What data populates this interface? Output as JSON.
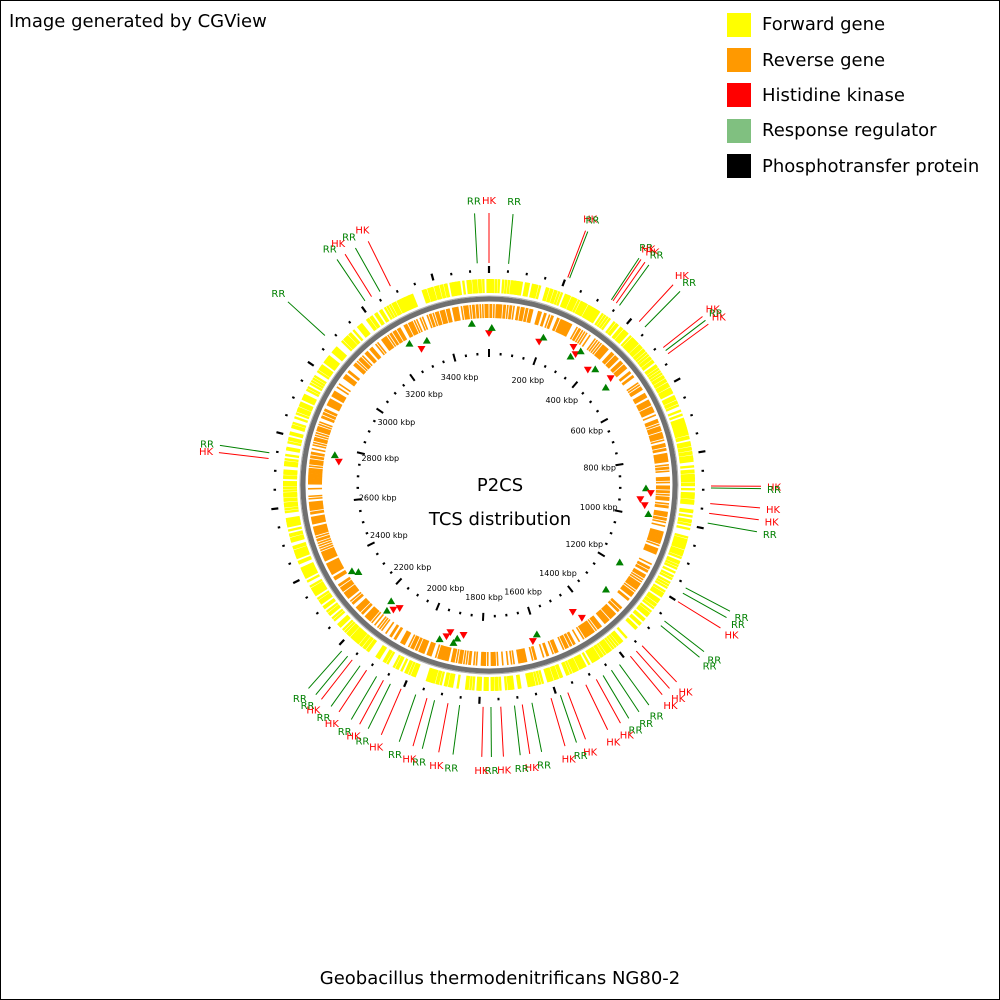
{
  "credit": "Image generated by CGView",
  "title_line1": "P2CS",
  "title_line2": "TCS distribution",
  "organism": "Geobacillus thermodenitrificans NG80-2",
  "legend": [
    {
      "label": "Forward gene",
      "color": "#ffff00"
    },
    {
      "label": "Reverse gene",
      "color": "#ff9900"
    },
    {
      "label": "Histidine kinase",
      "color": "#ff0000"
    },
    {
      "label": "Response regulator",
      "color": "#80c080"
    },
    {
      "label": "Phosphotransfer protein",
      "color": "#000000"
    }
  ],
  "genome_kbp": 3550,
  "ruler_labels": [
    {
      "kbp": 200,
      "text": "200 kbp"
    },
    {
      "kbp": 400,
      "text": "400 kbp"
    },
    {
      "kbp": 600,
      "text": "600 kbp"
    },
    {
      "kbp": 800,
      "text": "800 kbp"
    },
    {
      "kbp": 1000,
      "text": "1000 kbp"
    },
    {
      "kbp": 1200,
      "text": "1200 kbp"
    },
    {
      "kbp": 1400,
      "text": "1400 kbp"
    },
    {
      "kbp": 1600,
      "text": "1600 kbp"
    },
    {
      "kbp": 1800,
      "text": "1800 kbp"
    },
    {
      "kbp": 2000,
      "text": "2000 kbp"
    },
    {
      "kbp": 2200,
      "text": "2200 kbp"
    },
    {
      "kbp": 2400,
      "text": "2400 kbp"
    },
    {
      "kbp": 2600,
      "text": "2600 kbp"
    },
    {
      "kbp": 2800,
      "text": "2800 kbp"
    },
    {
      "kbp": 3000,
      "text": "3000 kbp"
    },
    {
      "kbp": 3200,
      "text": "3200 kbp"
    },
    {
      "kbp": 3400,
      "text": "3400 kbp"
    }
  ],
  "features": [
    {
      "type": "RR",
      "kbp": 50
    },
    {
      "type": "HK",
      "kbp": 0
    },
    {
      "type": "RR",
      "kbp": 3520
    },
    {
      "type": "HK",
      "kbp": 205
    },
    {
      "type": "RR",
      "kbp": 210
    },
    {
      "type": "RR",
      "kbp": 330
    },
    {
      "type": "HK",
      "kbp": 335
    },
    {
      "type": "HK",
      "kbp": 345
    },
    {
      "type": "RR",
      "kbp": 355
    },
    {
      "type": "HK",
      "kbp": 420
    },
    {
      "type": "RR",
      "kbp": 440
    },
    {
      "type": "HK",
      "kbp": 510
    },
    {
      "type": "RR",
      "kbp": 520
    },
    {
      "type": "HK",
      "kbp": 530
    },
    {
      "type": "HK",
      "kbp": 890
    },
    {
      "type": "RR",
      "kbp": 895
    },
    {
      "type": "HK",
      "kbp": 935
    },
    {
      "type": "HK",
      "kbp": 960
    },
    {
      "type": "RR",
      "kbp": 985
    },
    {
      "type": "RR",
      "kbp": 1160
    },
    {
      "type": "RR",
      "kbp": 1175
    },
    {
      "type": "HK",
      "kbp": 1200
    },
    {
      "type": "RR",
      "kbp": 1260
    },
    {
      "type": "RR",
      "kbp": 1275
    },
    {
      "type": "HK",
      "kbp": 1345
    },
    {
      "type": "HK",
      "kbp": 1365
    },
    {
      "type": "HK",
      "kbp": 1385
    },
    {
      "type": "RR",
      "kbp": 1420
    },
    {
      "type": "RR",
      "kbp": 1445
    },
    {
      "type": "RR",
      "kbp": 1470
    },
    {
      "type": "HK",
      "kbp": 1490
    },
    {
      "type": "HK",
      "kbp": 1520
    },
    {
      "type": "HK",
      "kbp": 1570
    },
    {
      "type": "RR",
      "kbp": 1590
    },
    {
      "type": "HK",
      "kbp": 1615
    },
    {
      "type": "RR",
      "kbp": 1665
    },
    {
      "type": "HK",
      "kbp": 1690
    },
    {
      "type": "RR",
      "kbp": 1710
    },
    {
      "type": "HK",
      "kbp": 1745
    },
    {
      "type": "RR",
      "kbp": 1770
    },
    {
      "type": "HK",
      "kbp": 1790
    },
    {
      "type": "RR",
      "kbp": 1850
    },
    {
      "type": "HK",
      "kbp": 1880
    },
    {
      "type": "RR",
      "kbp": 1915
    },
    {
      "type": "HK",
      "kbp": 1935
    },
    {
      "type": "RR",
      "kbp": 1965
    },
    {
      "type": "HK",
      "kbp": 2005
    },
    {
      "type": "RR",
      "kbp": 2035
    },
    {
      "type": "HK",
      "kbp": 2055
    },
    {
      "type": "RR",
      "kbp": 2075
    },
    {
      "type": "HK",
      "kbp": 2105
    },
    {
      "type": "RR",
      "kbp": 2125
    },
    {
      "type": "HK",
      "kbp": 2150
    },
    {
      "type": "RR",
      "kbp": 2165
    },
    {
      "type": "RR",
      "kbp": 2185
    },
    {
      "type": "HK",
      "kbp": 2730
    },
    {
      "type": "RR",
      "kbp": 2745
    },
    {
      "type": "RR",
      "kbp": 3080
    },
    {
      "type": "RR",
      "kbp": 3215
    },
    {
      "type": "HK",
      "kbp": 3235
    },
    {
      "type": "RR",
      "kbp": 3260
    },
    {
      "type": "HK",
      "kbp": 3290
    }
  ],
  "markers": [
    {
      "type": "HK",
      "kbp": 0
    },
    {
      "type": "RR",
      "kbp": 10
    },
    {
      "type": "RR",
      "kbp": 3490
    },
    {
      "type": "HK",
      "kbp": 190
    },
    {
      "type": "RR",
      "kbp": 200
    },
    {
      "type": "HK",
      "kbp": 310
    },
    {
      "type": "RR",
      "kbp": 320
    },
    {
      "type": "HK",
      "kbp": 330
    },
    {
      "type": "RR",
      "kbp": 340
    },
    {
      "type": "HK",
      "kbp": 400
    },
    {
      "type": "RR",
      "kbp": 420
    },
    {
      "type": "HK",
      "kbp": 480
    },
    {
      "type": "RR",
      "kbp": 495
    },
    {
      "type": "RR",
      "kbp": 900
    },
    {
      "type": "HK",
      "kbp": 915
    },
    {
      "type": "HK",
      "kbp": 940
    },
    {
      "type": "HK",
      "kbp": 960
    },
    {
      "type": "RR",
      "kbp": 990
    },
    {
      "type": "RR",
      "kbp": 1190
    },
    {
      "type": "RR",
      "kbp": 1300
    },
    {
      "type": "HK",
      "kbp": 1430
    },
    {
      "type": "HK",
      "kbp": 1445
    },
    {
      "type": "RR",
      "kbp": 1600
    },
    {
      "type": "HK",
      "kbp": 1620
    },
    {
      "type": "HK",
      "kbp": 1870
    },
    {
      "type": "RR",
      "kbp": 1890
    },
    {
      "type": "RR",
      "kbp": 1900
    },
    {
      "type": "HK",
      "kbp": 1920
    },
    {
      "type": "HK",
      "kbp": 1930
    },
    {
      "type": "RR",
      "kbp": 1950
    },
    {
      "type": "HK",
      "kbp": 2130
    },
    {
      "type": "HK",
      "kbp": 2145
    },
    {
      "type": "RR",
      "kbp": 2160
    },
    {
      "type": "RR",
      "kbp": 2170
    },
    {
      "type": "RR",
      "kbp": 2330
    },
    {
      "type": "RR",
      "kbp": 2345
    },
    {
      "type": "HK",
      "kbp": 2750
    },
    {
      "type": "RR",
      "kbp": 2770
    },
    {
      "type": "RR",
      "kbp": 3260
    },
    {
      "type": "HK",
      "kbp": 3290
    },
    {
      "type": "RR",
      "kbp": 3320
    }
  ],
  "colors": {
    "HK": "#ff0000",
    "RR": "#008000",
    "forward_track": "#ffff00",
    "reverse_track": "#ff9900",
    "backbone": "#707070"
  }
}
